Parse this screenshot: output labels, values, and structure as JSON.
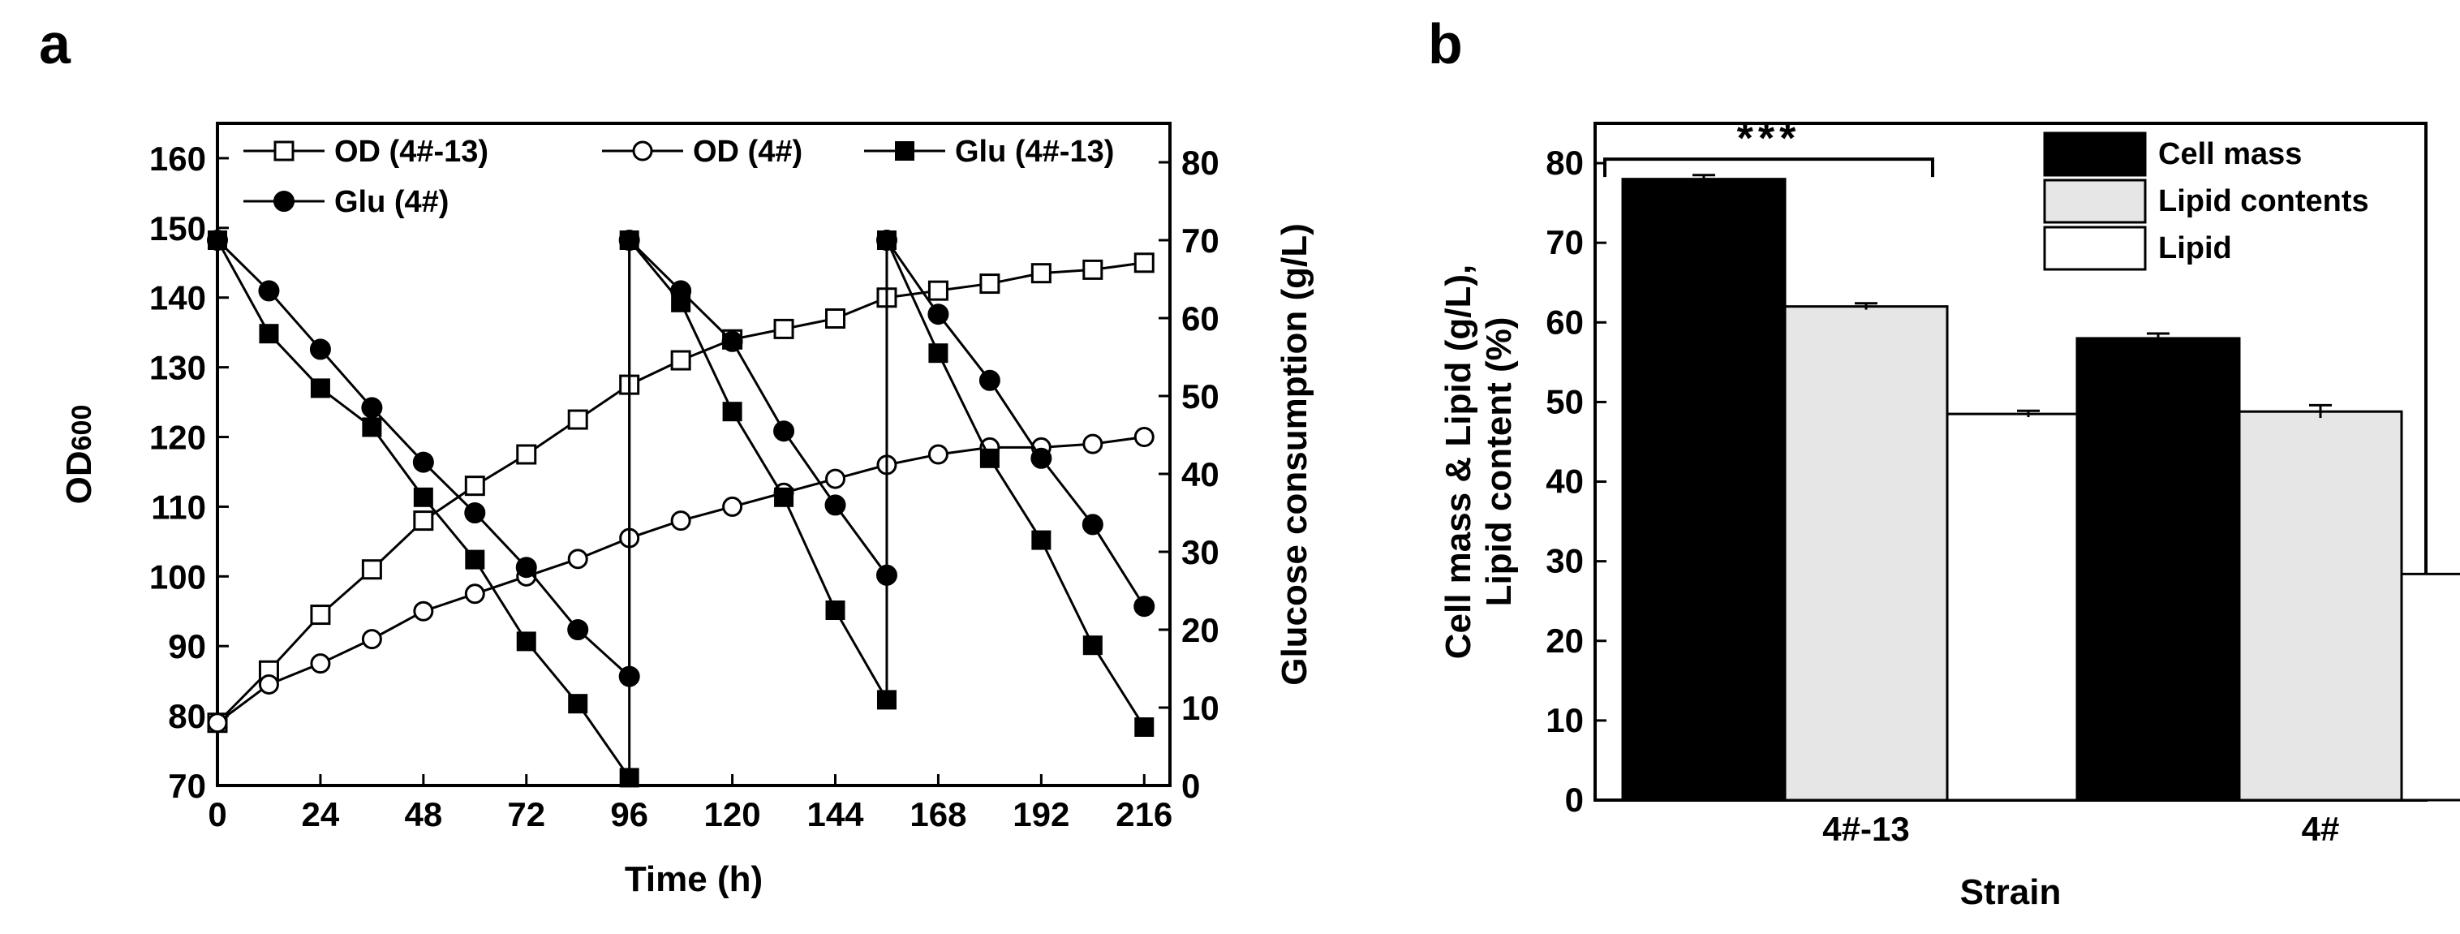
{
  "panels": {
    "a": "a",
    "b": "b"
  },
  "chart_data": [
    {
      "type": "line",
      "panel": "a",
      "xlabel": "Time (h)",
      "ylabel": "OD600",
      "ylabel_main": "OD",
      "ylabel_sub": "600",
      "y2label": "Glucose consumption (g/L)",
      "xlim": [
        0,
        222
      ],
      "ylim": [
        70,
        165
      ],
      "y2lim": [
        0,
        85
      ],
      "xticks": [
        0,
        24,
        48,
        72,
        96,
        120,
        144,
        168,
        192,
        216
      ],
      "yticks": [
        70,
        80,
        90,
        100,
        110,
        120,
        130,
        140,
        150,
        160
      ],
      "y2ticks": [
        0,
        10,
        20,
        30,
        40,
        50,
        60,
        70,
        80
      ],
      "legend_position": "top",
      "series": [
        {
          "name": "OD (4#-13)",
          "marker": "open-square",
          "axis": "left",
          "x": [
            0,
            12,
            24,
            36,
            48,
            60,
            72,
            84,
            96,
            108,
            120,
            132,
            144,
            156,
            168,
            180,
            192,
            204,
            216
          ],
          "y": [
            79,
            86.5,
            94.5,
            101,
            108,
            113,
            117.5,
            122.5,
            127.5,
            131,
            134,
            135.5,
            137,
            140,
            141,
            142,
            143.5,
            144,
            145
          ]
        },
        {
          "name": "OD (4#)",
          "marker": "open-circle",
          "axis": "left",
          "x": [
            0,
            12,
            24,
            36,
            48,
            60,
            72,
            84,
            96,
            108,
            120,
            132,
            144,
            156,
            168,
            180,
            192,
            204,
            216
          ],
          "y": [
            79,
            84.5,
            87.5,
            91,
            95,
            97.5,
            100,
            102.5,
            105.5,
            108,
            110,
            112,
            114,
            116,
            117.5,
            118.5,
            118.5,
            119,
            120
          ]
        },
        {
          "name": "Glu (4#-13)",
          "marker": "filled-square",
          "axis": "right",
          "x": [
            0,
            12,
            24,
            36,
            48,
            60,
            72,
            84,
            96,
            96,
            108,
            120,
            132,
            144,
            156,
            156,
            168,
            180,
            192,
            204,
            216
          ],
          "y": [
            70,
            58,
            51,
            46,
            37,
            29,
            18.5,
            10.5,
            1,
            70,
            62,
            48,
            37,
            22.5,
            11,
            70,
            55.5,
            42,
            31.5,
            18,
            7.5
          ]
        },
        {
          "name": "Glu (4#)",
          "marker": "filled-circle",
          "axis": "right",
          "x": [
            0,
            12,
            24,
            36,
            48,
            60,
            72,
            84,
            96,
            96,
            108,
            120,
            132,
            144,
            156,
            156,
            168,
            180,
            192,
            204,
            216
          ],
          "y": [
            70,
            63.5,
            56,
            48.5,
            41.5,
            35,
            28,
            20,
            14,
            70,
            63.5,
            57,
            45.5,
            36,
            27,
            70,
            60.5,
            52,
            42,
            33.5,
            23
          ]
        }
      ]
    },
    {
      "type": "bar",
      "panel": "b",
      "xlabel": "Strain",
      "ylabel_lines": [
        "Cell mass & Lipid (g/L),",
        "Lipid content (%)"
      ],
      "categories": [
        "4#-13",
        "4#"
      ],
      "ylim": [
        0,
        85
      ],
      "yticks": [
        0,
        10,
        20,
        30,
        40,
        50,
        60,
        70,
        80
      ],
      "legend_position": "top-right",
      "significance": "***",
      "series": [
        {
          "name": "Cell mass",
          "color": "#000000",
          "values": [
            78,
            58
          ],
          "errors": [
            0.5,
            0.6
          ]
        },
        {
          "name": "Lipid contents",
          "color": "#e6e6e6",
          "values": [
            62,
            48.8
          ],
          "errors": [
            0.4,
            0.8
          ]
        },
        {
          "name": "Lipid",
          "color": "#ffffff",
          "values": [
            48.5,
            28.4
          ],
          "errors": [
            0.4,
            0.8
          ]
        }
      ]
    }
  ]
}
